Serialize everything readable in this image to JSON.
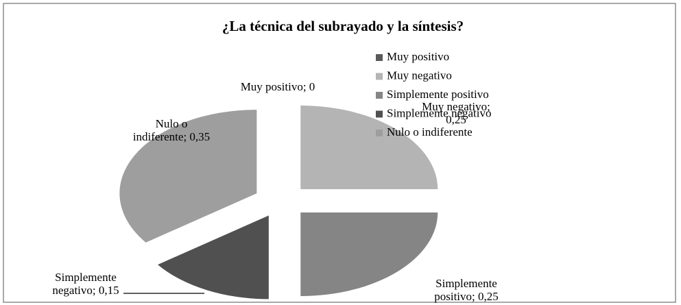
{
  "chart_data": {
    "type": "pie",
    "title": "¿La técnica del subrayado y la síntesis?",
    "categories": [
      "Muy positivo",
      "Muy negativo",
      "Simplemente positivo",
      "Simplemente negativo",
      "Nulo o indiferente"
    ],
    "values": [
      0,
      0.25,
      0.25,
      0.15,
      0.35
    ],
    "value_labels": [
      "Muy positivo; 0",
      "Muy negativo;\n0,25",
      "Simplemente\npositivo; 0,25",
      "Simplemente\nnegativo; 0,15",
      "Nulo o\nindiferente; 0,35"
    ],
    "colors": [
      "#5a5a5a",
      "#b4b4b4",
      "#858585",
      "#505050",
      "#9e9e9e"
    ],
    "legend": "right"
  }
}
